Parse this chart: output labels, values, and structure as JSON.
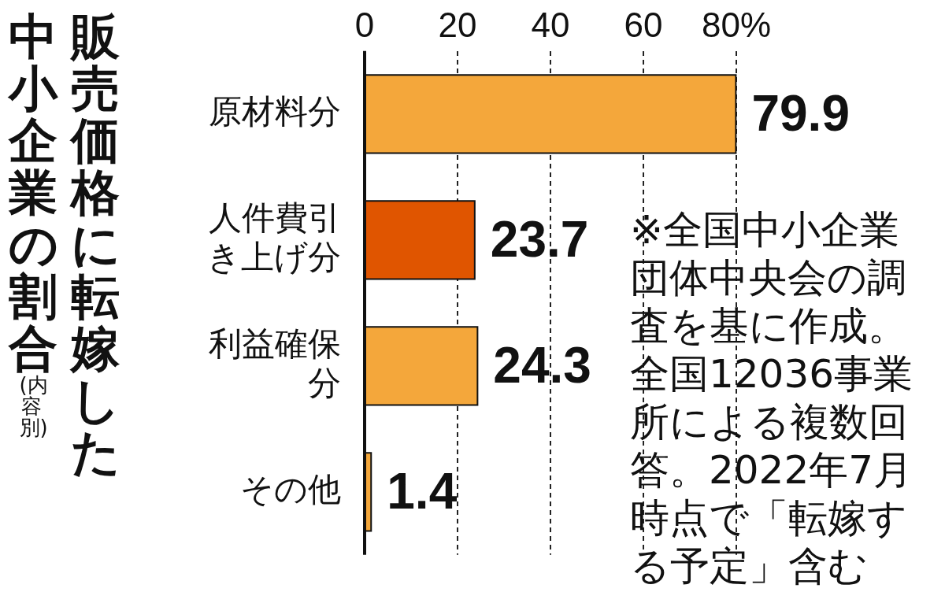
{
  "chart_data": {
    "type": "bar",
    "orientation": "horizontal",
    "title": "販売価格に転嫁した中小企業の割合",
    "subtitle": "(内容別)",
    "categories": [
      "原材料分",
      "人件費引き上げ分",
      "利益確保分",
      "その他"
    ],
    "values": [
      79.9,
      23.7,
      24.3,
      1.4
    ],
    "colors": [
      "#f4a73b",
      "#e05500",
      "#f4a73b",
      "#f4a73b"
    ],
    "xlim": [
      0,
      80
    ],
    "xticks": [
      0,
      20,
      40,
      60,
      {
        "value": 80,
        "label": "80%"
      }
    ],
    "grid": "x",
    "data_labels": true,
    "annotations": [
      "※全国中小企業団体中央会の調査を基に作成。全国12036事業所による複数回答。2022年7月時点で「転嫁する予定」含む"
    ]
  }
}
